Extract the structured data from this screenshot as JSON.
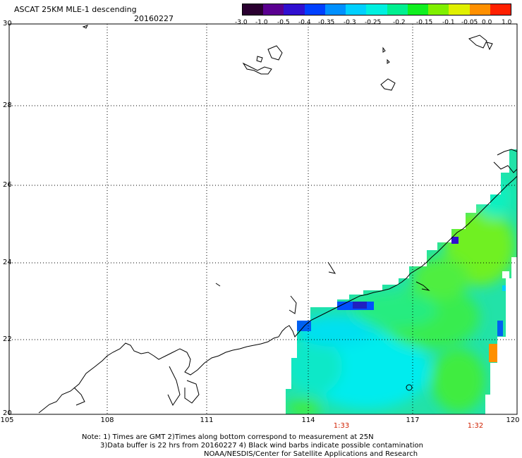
{
  "header": {
    "title": "ASCAT 25KM MLE-1 descending",
    "date": "20160227"
  },
  "colorbar": {
    "labels": [
      "-3.0",
      "-1.0",
      "-0.5",
      "-0.4",
      "-0.35",
      "-0.3",
      "-0.25",
      "-0.2",
      "-0.15",
      "-0.1",
      "-0.05",
      "0.0",
      "1.0"
    ],
    "colors": [
      "#2a0030",
      "#5a0090",
      "#3010d0",
      "#0040ff",
      "#0090ff",
      "#00d0ff",
      "#00f0e0",
      "#00f090",
      "#10f020",
      "#80f000",
      "#e0f000",
      "#ff9000",
      "#ff2000"
    ]
  },
  "map": {
    "lat_labels": [
      "30",
      "28",
      "26",
      "24",
      "22",
      "20"
    ],
    "lon_labels": [
      "105",
      "108",
      "111",
      "114",
      "117",
      "120"
    ],
    "time_labels": [
      "1:33",
      "1:32"
    ]
  },
  "footer": {
    "note1": "Note: 1) Times are GMT 2)Times along bottom correspond to measurement at 25N",
    "note2": "3)Data buffer is 22 hrs from 20160227 4) Black wind barbs indicate possible contamination",
    "note3": "NOAA/NESDIS/Center for Satellite Applications and Research"
  }
}
